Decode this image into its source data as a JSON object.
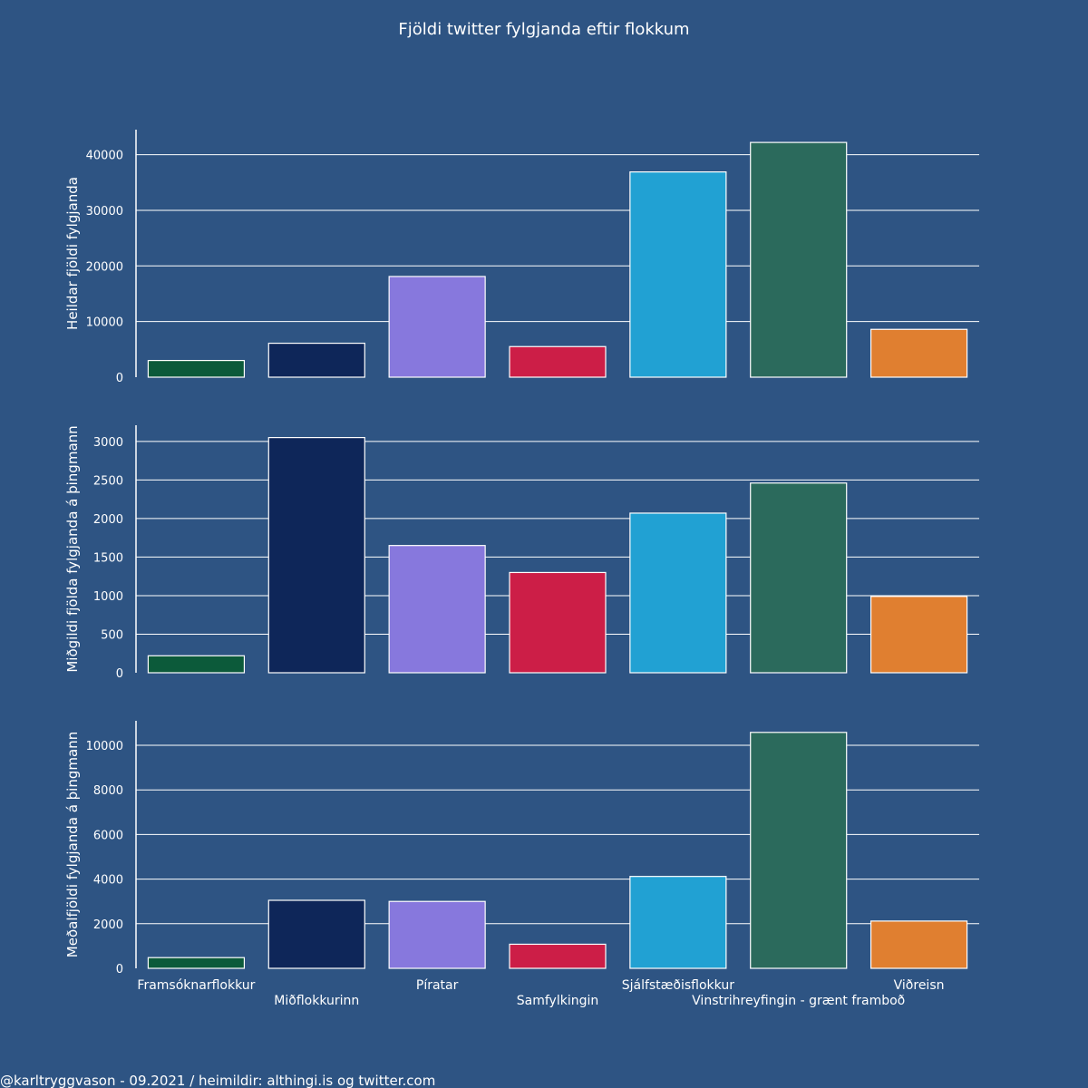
{
  "figure": {
    "title": "Fjöldi twitter fylgjanda eftir flokkum",
    "footer": "@karltryggvason - 09.2021 / heimildir: althingi.is og twitter.com",
    "background": "#2e5483"
  },
  "chart_data": [
    {
      "type": "bar",
      "ylabel": "Heildar fjöldi fylgjanda",
      "ylim": [
        0,
        44500
      ],
      "yticks": [
        0,
        10000,
        20000,
        30000,
        40000
      ],
      "categories": [
        "Framsóknarflokkur",
        "Miðflokkurinn",
        "Píratar",
        "Samfylkingin",
        "Sjálfstæðisflokkur",
        "Vinstrihreyfingin - grænt framboð",
        "Viðreisn"
      ],
      "values": [
        3000,
        6100,
        18100,
        5500,
        36900,
        42200,
        8600
      ],
      "colors": [
        "#0c5a3a",
        "#0e2659",
        "#8778dd",
        "#cc1e47",
        "#21a1d3",
        "#2b6a5c",
        "#e07f30"
      ],
      "show_category_labels": false
    },
    {
      "type": "bar",
      "ylabel": "Miðgildi fjölda fylgjanda á þingmann",
      "ylim": [
        0,
        3210
      ],
      "yticks": [
        0,
        500,
        1000,
        1500,
        2000,
        2500,
        3000
      ],
      "categories": [
        "Framsóknarflokkur",
        "Miðflokkurinn",
        "Píratar",
        "Samfylkingin",
        "Sjálfstæðisflokkur",
        "Vinstrihreyfingin - grænt framboð",
        "Viðreisn"
      ],
      "values": [
        220,
        3050,
        1650,
        1300,
        2070,
        2460,
        990
      ],
      "colors": [
        "#0c5a3a",
        "#0e2659",
        "#8778dd",
        "#cc1e47",
        "#21a1d3",
        "#2b6a5c",
        "#e07f30"
      ],
      "show_category_labels": false
    },
    {
      "type": "bar",
      "ylabel": "Meðalfjöldi fylgjanda á þingmann",
      "ylim": [
        0,
        11100
      ],
      "yticks": [
        0,
        2000,
        4000,
        6000,
        8000,
        10000
      ],
      "categories": [
        "Framsóknarflokkur",
        "Miðflokkurinn",
        "Píratar",
        "Samfylkingin",
        "Sjálfstæðisflokkur",
        "Vinstrihreyfingin - grænt framboð",
        "Viðreisn"
      ],
      "values": [
        480,
        3050,
        3000,
        1080,
        4120,
        10580,
        2120
      ],
      "colors": [
        "#0c5a3a",
        "#0e2659",
        "#8778dd",
        "#cc1e47",
        "#21a1d3",
        "#2b6a5c",
        "#e07f30"
      ],
      "show_category_labels": true
    }
  ]
}
